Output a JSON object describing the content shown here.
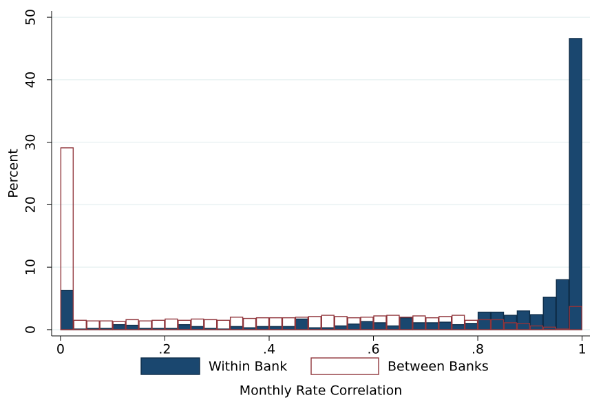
{
  "chart_data": {
    "type": "histogram",
    "x_label": "Monthly Rate Correlation",
    "y_label": "Percent",
    "bins": [
      0,
      0.025,
      0.05,
      0.075,
      0.1,
      0.125,
      0.15,
      0.175,
      0.2,
      0.225,
      0.25,
      0.275,
      0.3,
      0.325,
      0.35,
      0.375,
      0.4,
      0.425,
      0.45,
      0.475,
      0.5,
      0.525,
      0.55,
      0.575,
      0.6,
      0.625,
      0.65,
      0.675,
      0.7,
      0.725,
      0.75,
      0.775,
      0.8,
      0.825,
      0.85,
      0.875,
      0.9,
      0.925,
      0.95,
      0.975,
      1
    ],
    "series": [
      {
        "name": "Within Bank",
        "color": "#1a476f",
        "fill": true,
        "values": [
          6.3,
          0.1,
          0.2,
          0.2,
          0.8,
          0.7,
          0.2,
          0.2,
          0.2,
          0.8,
          0.5,
          0.2,
          0.1,
          0.5,
          0.3,
          0.5,
          0.5,
          0.5,
          1.7,
          0.3,
          0.3,
          0.6,
          0.9,
          1.3,
          1.1,
          0.6,
          1.9,
          1.1,
          1.1,
          1.2,
          0.8,
          1.0,
          2.8,
          2.8,
          2.3,
          3.0,
          2.4,
          5.2,
          8.0,
          46.6
        ]
      },
      {
        "name": "Between Banks",
        "color": "#90353b",
        "fill": false,
        "values": [
          29.1,
          1.5,
          1.4,
          1.4,
          1.3,
          1.6,
          1.4,
          1.5,
          1.7,
          1.5,
          1.7,
          1.6,
          1.5,
          2.0,
          1.8,
          1.9,
          1.9,
          1.9,
          2.0,
          2.1,
          2.3,
          2.1,
          1.9,
          2.0,
          2.2,
          2.3,
          2.0,
          2.2,
          1.9,
          2.1,
          2.3,
          1.5,
          1.6,
          1.6,
          1.1,
          1.0,
          0.6,
          0.4,
          0.1,
          3.7
        ]
      }
    ],
    "xlim": [
      -0.017,
      1.015
    ],
    "ylim": [
      -1,
      51
    ],
    "xticks": [
      0,
      {
        "value": 0.2,
        "label": ".2"
      },
      {
        "value": 0.4,
        "label": ".4"
      },
      {
        "value": 0.6,
        "label": ".6"
      },
      {
        "value": 0.8,
        "label": ".8"
      },
      1
    ],
    "yticks": [
      0,
      10,
      20,
      30,
      40,
      50
    ],
    "grid": true,
    "legend": "bottom"
  }
}
